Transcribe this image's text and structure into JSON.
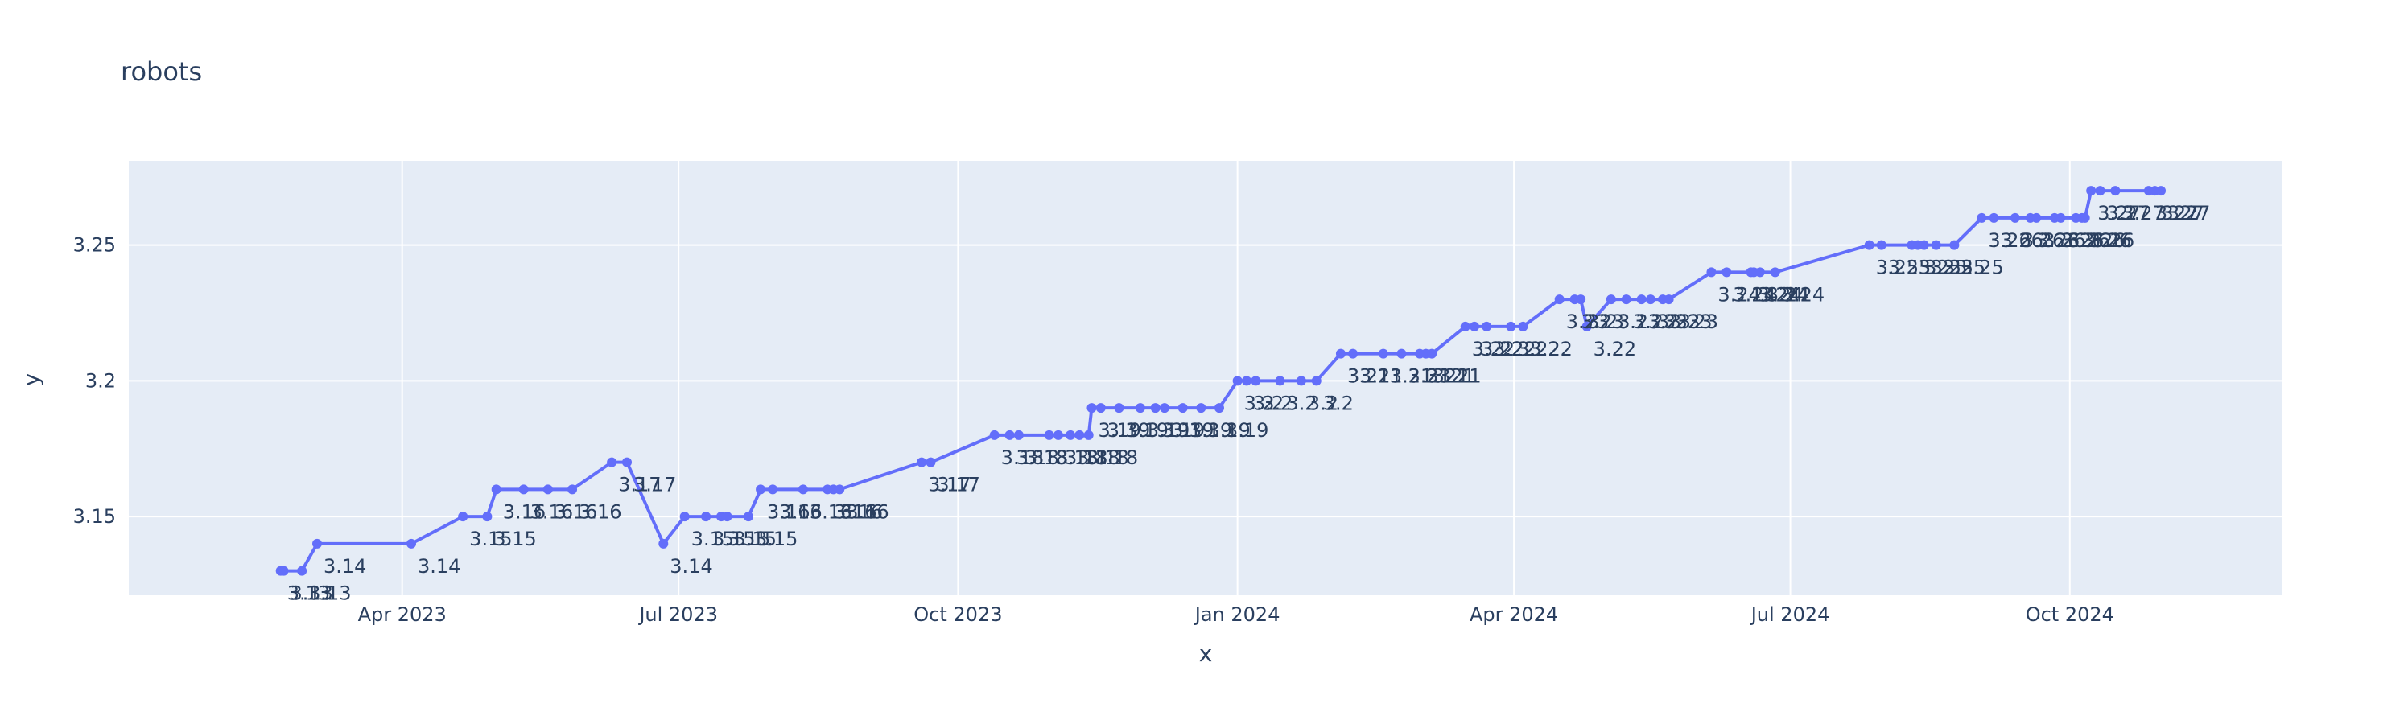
{
  "chart_data": {
    "type": "line",
    "title": "robots",
    "xlabel": "x",
    "ylabel": "y",
    "xlim": [
      "2023-01-01",
      "2024-12-10"
    ],
    "ylim": [
      3.121,
      3.281
    ],
    "x_ticks": [
      {
        "date": "2023-04-01",
        "label": "Apr 2023"
      },
      {
        "date": "2023-07-01",
        "label": "Jul 2023"
      },
      {
        "date": "2023-10-01",
        "label": "Oct 2023"
      },
      {
        "date": "2024-01-01",
        "label": "Jan 2024"
      },
      {
        "date": "2024-04-01",
        "label": "Apr 2024"
      },
      {
        "date": "2024-07-01",
        "label": "Jul 2024"
      },
      {
        "date": "2024-10-01",
        "label": "Oct 2024"
      }
    ],
    "y_ticks": [
      {
        "value": 3.15,
        "label": "3.15"
      },
      {
        "value": 3.2,
        "label": "3.2"
      },
      {
        "value": 3.25,
        "label": "3.25"
      }
    ],
    "grid": true,
    "colors": {
      "line": "#636efa",
      "plot_bg": "#e5ecf6",
      "grid": "#ffffff",
      "text": "#2a3f5f"
    },
    "series": [
      {
        "points": [
          {
            "x": "2023-02-20",
            "y": 3.13,
            "label": "3.13"
          },
          {
            "x": "2023-02-21",
            "y": 3.13,
            "label": "3.13"
          },
          {
            "x": "2023-02-27",
            "y": 3.13,
            "label": "3.13"
          },
          {
            "x": "2023-03-04",
            "y": 3.14,
            "label": "3.14"
          },
          {
            "x": "2023-04-04",
            "y": 3.14,
            "label": "3.14"
          },
          {
            "x": "2023-04-21",
            "y": 3.15,
            "label": "3.15"
          },
          {
            "x": "2023-04-29",
            "y": 3.15,
            "label": "3.15"
          },
          {
            "x": "2023-05-02",
            "y": 3.16,
            "label": "3.16"
          },
          {
            "x": "2023-05-11",
            "y": 3.16,
            "label": "3.16"
          },
          {
            "x": "2023-05-19",
            "y": 3.16,
            "label": "3.16"
          },
          {
            "x": "2023-05-27",
            "y": 3.16,
            "label": "3.16"
          },
          {
            "x": "2023-06-09",
            "y": 3.17,
            "label": "3.17"
          },
          {
            "x": "2023-06-14",
            "y": 3.17,
            "label": "3.17"
          },
          {
            "x": "2023-06-26",
            "y": 3.14,
            "label": "3.14"
          },
          {
            "x": "2023-07-03",
            "y": 3.15,
            "label": "3.15"
          },
          {
            "x": "2023-07-10",
            "y": 3.15,
            "label": "3.15"
          },
          {
            "x": "2023-07-15",
            "y": 3.15,
            "label": "3.15"
          },
          {
            "x": "2023-07-17",
            "y": 3.15,
            "label": "3.15"
          },
          {
            "x": "2023-07-24",
            "y": 3.15,
            "label": "3.15"
          },
          {
            "x": "2023-07-28",
            "y": 3.16,
            "label": "3.16"
          },
          {
            "x": "2023-08-01",
            "y": 3.16,
            "label": "3.16"
          },
          {
            "x": "2023-08-11",
            "y": 3.16,
            "label": "3.16"
          },
          {
            "x": "2023-08-19",
            "y": 3.16,
            "label": "3.16"
          },
          {
            "x": "2023-08-21",
            "y": 3.16,
            "label": "3.16"
          },
          {
            "x": "2023-08-23",
            "y": 3.16,
            "label": "3.16"
          },
          {
            "x": "2023-09-19",
            "y": 3.17,
            "label": "3.17"
          },
          {
            "x": "2023-09-22",
            "y": 3.17,
            "label": "3.17"
          },
          {
            "x": "2023-10-13",
            "y": 3.18,
            "label": "3.18"
          },
          {
            "x": "2023-10-18",
            "y": 3.18,
            "label": "3.18"
          },
          {
            "x": "2023-10-21",
            "y": 3.18,
            "label": "3.18"
          },
          {
            "x": "2023-10-31",
            "y": 3.18,
            "label": "3.18"
          },
          {
            "x": "2023-11-03",
            "y": 3.18,
            "label": "3.18"
          },
          {
            "x": "2023-11-07",
            "y": 3.18,
            "label": "3.18"
          },
          {
            "x": "2023-11-10",
            "y": 3.18,
            "label": "3.18"
          },
          {
            "x": "2023-11-13",
            "y": 3.18,
            "label": "3.18"
          },
          {
            "x": "2023-11-14",
            "y": 3.19,
            "label": "3.19"
          },
          {
            "x": "2023-11-17",
            "y": 3.19,
            "label": "3.19"
          },
          {
            "x": "2023-11-23",
            "y": 3.19,
            "label": "3.19"
          },
          {
            "x": "2023-11-30",
            "y": 3.19,
            "label": "3.19"
          },
          {
            "x": "2023-12-05",
            "y": 3.19,
            "label": "3.19"
          },
          {
            "x": "2023-12-08",
            "y": 3.19,
            "label": "3.19"
          },
          {
            "x": "2023-12-14",
            "y": 3.19,
            "label": "3.19"
          },
          {
            "x": "2023-12-20",
            "y": 3.19,
            "label": "3.19"
          },
          {
            "x": "2023-12-26",
            "y": 3.19,
            "label": "3.19"
          },
          {
            "x": "2024-01-01",
            "y": 3.2,
            "label": "3.2"
          },
          {
            "x": "2024-01-04",
            "y": 3.2,
            "label": "3.2"
          },
          {
            "x": "2024-01-07",
            "y": 3.2,
            "label": "3.2"
          },
          {
            "x": "2024-01-15",
            "y": 3.2,
            "label": "3.2"
          },
          {
            "x": "2024-01-22",
            "y": 3.2,
            "label": "3.2"
          },
          {
            "x": "2024-01-27",
            "y": 3.2,
            "label": "3.2"
          },
          {
            "x": "2024-02-04",
            "y": 3.21,
            "label": "3.21"
          },
          {
            "x": "2024-02-08",
            "y": 3.21,
            "label": "3.21"
          },
          {
            "x": "2024-02-18",
            "y": 3.21,
            "label": "3.21"
          },
          {
            "x": "2024-02-24",
            "y": 3.21,
            "label": "3.21"
          },
          {
            "x": "2024-03-01",
            "y": 3.21,
            "label": "3.21"
          },
          {
            "x": "2024-03-03",
            "y": 3.21,
            "label": "3.21"
          },
          {
            "x": "2024-03-05",
            "y": 3.21,
            "label": "3.21"
          },
          {
            "x": "2024-03-16",
            "y": 3.22,
            "label": "3.22"
          },
          {
            "x": "2024-03-19",
            "y": 3.22,
            "label": "3.22"
          },
          {
            "x": "2024-03-23",
            "y": 3.22,
            "label": "3.22"
          },
          {
            "x": "2024-03-31",
            "y": 3.22,
            "label": "3.22"
          },
          {
            "x": "2024-04-04",
            "y": 3.22,
            "label": "3.22"
          },
          {
            "x": "2024-04-16",
            "y": 3.23,
            "label": "3.23"
          },
          {
            "x": "2024-04-21",
            "y": 3.23,
            "label": "3.23"
          },
          {
            "x": "2024-04-23",
            "y": 3.23,
            "label": "3.23"
          },
          {
            "x": "2024-04-25",
            "y": 3.22,
            "label": "3.22"
          },
          {
            "x": "2024-05-03",
            "y": 3.23,
            "label": "3.23"
          },
          {
            "x": "2024-05-08",
            "y": 3.23,
            "label": "3.23"
          },
          {
            "x": "2024-05-13",
            "y": 3.23,
            "label": "3.23"
          },
          {
            "x": "2024-05-16",
            "y": 3.23,
            "label": "3.23"
          },
          {
            "x": "2024-05-20",
            "y": 3.23,
            "label": "3.23"
          },
          {
            "x": "2024-05-22",
            "y": 3.23,
            "label": "3.23"
          },
          {
            "x": "2024-06-05",
            "y": 3.24,
            "label": "3.24"
          },
          {
            "x": "2024-06-10",
            "y": 3.24,
            "label": "3.24"
          },
          {
            "x": "2024-06-18",
            "y": 3.24,
            "label": "3.24"
          },
          {
            "x": "2024-06-19",
            "y": 3.24,
            "label": "3.24"
          },
          {
            "x": "2024-06-21",
            "y": 3.24,
            "label": "3.24"
          },
          {
            "x": "2024-06-26",
            "y": 3.24,
            "label": "3.24"
          },
          {
            "x": "2024-07-27",
            "y": 3.25,
            "label": "3.25"
          },
          {
            "x": "2024-07-31",
            "y": 3.25,
            "label": "3.25"
          },
          {
            "x": "2024-08-10",
            "y": 3.25,
            "label": "3.25"
          },
          {
            "x": "2024-08-12",
            "y": 3.25,
            "label": "3.25"
          },
          {
            "x": "2024-08-14",
            "y": 3.25,
            "label": "3.25"
          },
          {
            "x": "2024-08-18",
            "y": 3.25,
            "label": "3.25"
          },
          {
            "x": "2024-08-24",
            "y": 3.25,
            "label": "3.25"
          },
          {
            "x": "2024-09-02",
            "y": 3.26,
            "label": "3.26"
          },
          {
            "x": "2024-09-06",
            "y": 3.26,
            "label": "3.26"
          },
          {
            "x": "2024-09-13",
            "y": 3.26,
            "label": "3.26"
          },
          {
            "x": "2024-09-18",
            "y": 3.26,
            "label": "3.26"
          },
          {
            "x": "2024-09-20",
            "y": 3.26,
            "label": "3.26"
          },
          {
            "x": "2024-09-26",
            "y": 3.26,
            "label": "3.26"
          },
          {
            "x": "2024-09-28",
            "y": 3.26,
            "label": "3.26"
          },
          {
            "x": "2024-10-03",
            "y": 3.26,
            "label": "3.26"
          },
          {
            "x": "2024-10-05",
            "y": 3.26,
            "label": "3.26"
          },
          {
            "x": "2024-10-06",
            "y": 3.26,
            "label": "3.26"
          },
          {
            "x": "2024-10-08",
            "y": 3.27,
            "label": "3.27"
          },
          {
            "x": "2024-10-11",
            "y": 3.27,
            "label": "3.27"
          },
          {
            "x": "2024-10-16",
            "y": 3.27,
            "label": "3.27"
          },
          {
            "x": "2024-10-27",
            "y": 3.27,
            "label": "3.27"
          },
          {
            "x": "2024-10-29",
            "y": 3.27,
            "label": "3.27"
          },
          {
            "x": "2024-10-31",
            "y": 3.27,
            "label": "3.27"
          }
        ]
      }
    ]
  }
}
